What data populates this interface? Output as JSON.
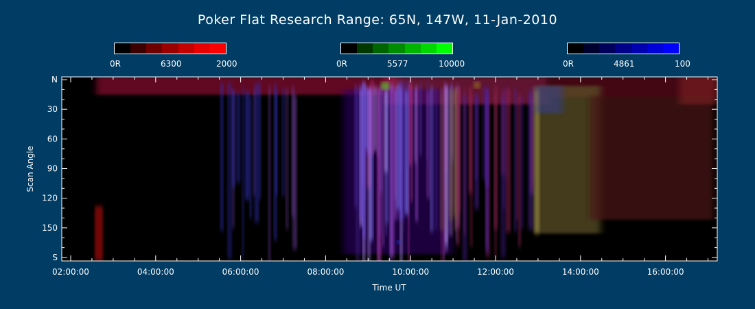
{
  "chart_data": {
    "type": "heatmap",
    "title": "Poker Flat Research Range: 65N, 147W, 11-Jan-2010",
    "xlabel": "Time UT",
    "ylabel": "Scan Angle",
    "x_ticks": [
      "02:00:00",
      "04:00:00",
      "06:00:00",
      "08:00:00",
      "10:00:00",
      "12:00:00",
      "14:00:00",
      "16:00:00"
    ],
    "y_ticks": [
      "N",
      "30",
      "60",
      "90",
      "120",
      "150",
      "S"
    ],
    "colorbars": [
      {
        "name": "6300",
        "channel": "red",
        "min_label": "0R",
        "center_label": "6300",
        "max_label": "2000",
        "swatches": [
          "#000000",
          "#3c0000",
          "#6e0000",
          "#9a0000",
          "#c40000",
          "#e80000",
          "#ff0000"
        ]
      },
      {
        "name": "5577",
        "channel": "green",
        "min_label": "0R",
        "center_label": "5577",
        "max_label": "10000",
        "swatches": [
          "#000000",
          "#003800",
          "#006400",
          "#008c00",
          "#00b400",
          "#00d800",
          "#00ff00"
        ]
      },
      {
        "name": "4861",
        "channel": "blue",
        "min_label": "0R",
        "center_label": "4861",
        "max_label": "100",
        "swatches": [
          "#000000",
          "#00002e",
          "#00005a",
          "#000088",
          "#0000b0",
          "#0000d8",
          "#0000ff"
        ]
      }
    ]
  }
}
